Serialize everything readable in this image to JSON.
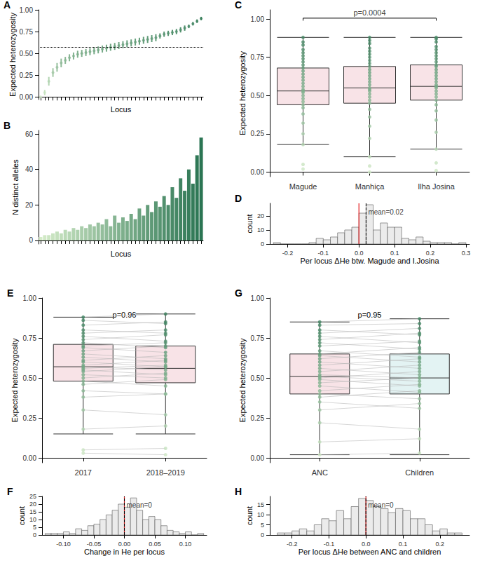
{
  "chart_data": [
    {
      "title": "A",
      "type": "scatter",
      "x_label": "Locus",
      "y_label": "Expected heterozygosity",
      "categories": [
        null,
        null,
        null,
        null,
        null,
        null,
        null,
        null,
        null,
        null,
        null,
        null,
        null,
        null,
        null,
        null,
        null,
        null,
        null,
        null,
        null,
        null,
        null,
        null,
        null,
        null,
        null,
        null,
        null,
        null,
        null,
        null,
        null,
        null,
        null,
        null,
        null,
        null,
        null,
        null
      ],
      "values": [
        0.0,
        0.05,
        0.18,
        0.28,
        0.34,
        0.39,
        0.42,
        0.45,
        0.47,
        0.49,
        0.5,
        0.51,
        0.52,
        0.53,
        0.54,
        0.55,
        0.56,
        0.57,
        0.58,
        0.59,
        0.6,
        0.61,
        0.62,
        0.63,
        0.64,
        0.65,
        0.66,
        0.67,
        0.68,
        0.7,
        0.72,
        0.73,
        0.74,
        0.75,
        0.77,
        0.79,
        0.81,
        0.84,
        0.87,
        0.9
      ],
      "error": [
        0.0,
        0.03,
        0.05,
        0.05,
        0.05,
        0.05,
        0.04,
        0.04,
        0.04,
        0.04,
        0.04,
        0.04,
        0.04,
        0.04,
        0.04,
        0.04,
        0.04,
        0.04,
        0.04,
        0.04,
        0.04,
        0.04,
        0.04,
        0.04,
        0.04,
        0.04,
        0.04,
        0.04,
        0.04,
        0.03,
        0.03,
        0.03,
        0.03,
        0.03,
        0.03,
        0.03,
        0.02,
        0.02,
        0.02,
        0.02
      ],
      "reference": {
        "value": 0.57,
        "line_style": "dotted"
      },
      "color": [
        "#d5ecc9",
        "#2b7553"
      ],
      "ylim": [
        -0.03,
        1.0
      ],
      "yticks": [
        {
          "value": 0,
          "label": "0.00"
        },
        0.25,
        {
          "value": 0.5,
          "label": "0.50"
        },
        0.75,
        {
          "value": 1,
          "label": "1.00"
        }
      ],
      "tick_labels": "y",
      "grid": false
    },
    {
      "title": "B",
      "type": "bar",
      "x_label": "Locus",
      "y_label": "N distinct alleles",
      "categories": [
        null,
        null,
        null,
        null,
        null,
        null,
        null,
        null,
        null,
        null,
        null,
        null,
        null,
        null,
        null,
        null,
        null,
        null,
        null,
        null,
        null,
        null,
        null,
        null,
        null,
        null,
        null,
        null,
        null,
        null,
        null,
        null,
        null,
        null,
        null,
        null,
        null,
        null,
        null,
        null
      ],
      "values": [
        2,
        3,
        3,
        4,
        5,
        4,
        6,
        5,
        7,
        6,
        8,
        7,
        9,
        8,
        10,
        9,
        12,
        8,
        14,
        10,
        13,
        11,
        15,
        12,
        18,
        14,
        20,
        16,
        22,
        19,
        25,
        20,
        30,
        24,
        35,
        28,
        40,
        32,
        48,
        58
      ],
      "color": [
        "#d5ecc9",
        "#2b7553"
      ],
      "ylim": [
        -2,
        62
      ],
      "yticks": [
        0,
        20,
        40,
        60
      ],
      "tick_labels": "y",
      "grid": false
    },
    {
      "title": "C",
      "type": "boxplot",
      "y_label": "Expected heterozygosity",
      "categories": [
        "Magude",
        "Manhiça",
        "Ilha Josina"
      ],
      "boxes": [
        [
          0.18,
          0.44,
          0.53,
          0.68,
          0.88
        ],
        [
          0.1,
          0.45,
          0.55,
          0.69,
          0.88
        ],
        [
          0.15,
          0.47,
          0.56,
          0.7,
          0.88
        ]
      ],
      "points": [
        [
          0.02,
          0.05,
          0.18,
          0.25,
          0.32,
          0.38,
          0.42,
          0.44,
          0.46,
          0.48,
          0.5,
          0.52,
          0.53,
          0.54,
          0.56,
          0.58,
          0.6,
          0.62,
          0.64,
          0.66,
          0.68,
          0.7,
          0.72,
          0.74,
          0.76,
          0.78,
          0.8,
          0.83,
          0.85,
          0.88
        ],
        [
          0.0,
          0.04,
          0.1,
          0.22,
          0.3,
          0.36,
          0.41,
          0.45,
          0.47,
          0.49,
          0.51,
          0.53,
          0.54,
          0.55,
          0.57,
          0.59,
          0.61,
          0.63,
          0.65,
          0.67,
          0.69,
          0.71,
          0.73,
          0.75,
          0.77,
          0.79,
          0.81,
          0.84,
          0.86,
          0.88
        ],
        [
          0.01,
          0.06,
          0.15,
          0.26,
          0.34,
          0.4,
          0.44,
          0.47,
          0.49,
          0.51,
          0.53,
          0.55,
          0.56,
          0.57,
          0.59,
          0.61,
          0.63,
          0.65,
          0.67,
          0.69,
          0.7,
          0.72,
          0.74,
          0.76,
          0.78,
          0.8,
          0.82,
          0.85,
          0.87,
          0.88
        ]
      ],
      "annotation": {
        "text": "p=0.0004",
        "from": "Magude",
        "to": "Ilha Josina"
      },
      "colors": [
        "#f8e3e7",
        "#f8e3e7",
        "#f8e3e7"
      ],
      "color": [
        "#d5ecc9",
        "#2b7553"
      ],
      "ylim": [
        -0.03,
        1.06
      ],
      "yticks": [
        {
          "value": 0,
          "label": "0.00"
        },
        0.25,
        {
          "value": 0.5,
          "label": "0.50"
        },
        0.75,
        {
          "value": 1,
          "label": "1.00"
        }
      ],
      "grid": false
    },
    {
      "title": "D",
      "type": "histogram",
      "x_label": "Per locus ΔHe btw. Magude and I.Josina",
      "y_label": "count",
      "bins": [
        -0.24,
        -0.22,
        -0.2,
        -0.18,
        -0.16,
        -0.14,
        -0.12,
        -0.1,
        -0.08,
        -0.06,
        -0.04,
        -0.02,
        0,
        0.02,
        0.04,
        0.06,
        0.08,
        0.1,
        0.12,
        0.14,
        0.16,
        0.18,
        0.2,
        0.22,
        0.24,
        0.26,
        0.28,
        0.3
      ],
      "counts": [
        1,
        0,
        0,
        0,
        0,
        1,
        4,
        3,
        5,
        8,
        10,
        12,
        22,
        28,
        10,
        15,
        12,
        12,
        4,
        3,
        5,
        2,
        1,
        1,
        1,
        0,
        1
      ],
      "reference": 0,
      "mean": 0.02,
      "annotation": "mean=0.02",
      "xlim": [
        -0.25,
        0.31
      ],
      "xticks": [
        -0.2,
        -0.1,
        {
          "value": 0,
          "label": "0.0"
        },
        0.1,
        0.2,
        0.3
      ],
      "ylim": [
        0,
        29
      ],
      "yticks": [
        0,
        10,
        20
      ],
      "grid": false
    },
    {
      "title": "E",
      "type": "paired_boxplot",
      "y_label": "Expected heterozygosity",
      "categories": [
        "2017",
        "2018–2019"
      ],
      "boxes": [
        [
          0.15,
          0.48,
          0.57,
          0.71,
          0.88
        ],
        [
          0.15,
          0.47,
          0.56,
          0.7,
          0.9
        ]
      ],
      "points": [
        [
          0.03,
          0.05,
          0.18,
          0.3,
          0.38,
          0.42,
          0.46,
          0.48,
          0.5,
          0.52,
          0.54,
          0.55,
          0.56,
          0.57,
          0.58,
          0.6,
          0.61,
          0.63,
          0.65,
          0.67,
          0.69,
          0.7,
          0.72,
          0.74,
          0.76,
          0.78,
          0.8,
          0.83,
          0.86,
          0.88
        ],
        [
          0.02,
          0.06,
          0.2,
          0.27,
          0.4,
          0.4,
          0.49,
          0.45,
          0.53,
          0.5,
          0.57,
          0.52,
          0.58,
          0.55,
          0.61,
          0.57,
          0.64,
          0.6,
          0.62,
          0.7,
          0.66,
          0.72,
          0.69,
          0.77,
          0.73,
          0.8,
          0.78,
          0.85,
          0.84,
          0.9
        ]
      ],
      "annotation": "p=0.96",
      "colors": [
        "#f8e3e7",
        "#f8e3e7"
      ],
      "color": [
        "#d5ecc9",
        "#2b7553"
      ],
      "ylim": [
        -0.03,
        1.0
      ],
      "yticks": [
        {
          "value": 0,
          "label": "0.00"
        },
        0.25,
        {
          "value": 0.5,
          "label": "0.50"
        },
        0.75,
        {
          "value": 1,
          "label": "1.00"
        }
      ],
      "grid": false
    },
    {
      "title": "F",
      "type": "histogram",
      "x_label": "Change in He per locus",
      "y_label": "count",
      "bins": [
        -0.13,
        -0.12,
        -0.11,
        -0.1,
        -0.09,
        -0.08,
        -0.07,
        -0.06,
        -0.05,
        -0.04,
        -0.03,
        -0.02,
        -0.01,
        0,
        0.01,
        0.02,
        0.03,
        0.04,
        0.05,
        0.06,
        0.07,
        0.08,
        0.09,
        0.1,
        0.11,
        0.12,
        0.13
      ],
      "counts": [
        1,
        1,
        1,
        2,
        1,
        4,
        3,
        6,
        7,
        10,
        13,
        16,
        20,
        18,
        24,
        16,
        10,
        12,
        10,
        6,
        3,
        2,
        1,
        2,
        0,
        1
      ],
      "reference": 0,
      "mean": 0,
      "annotation": "mean=0",
      "xlim": [
        -0.135,
        0.135
      ],
      "xticks": [
        {
          "value": -0.1,
          "label": "-0.10"
        },
        -0.05,
        {
          "value": 0,
          "label": "0.00"
        },
        0.05,
        {
          "value": 0.1,
          "label": "0.10"
        }
      ],
      "ylim": [
        0,
        25
      ],
      "yticks": [
        0,
        5,
        10,
        15,
        20,
        25
      ],
      "grid": false
    },
    {
      "title": "G",
      "type": "paired_boxplot",
      "y_label": "Expected heterozygosity",
      "categories": [
        "ANC",
        "Children"
      ],
      "boxes": [
        [
          0.02,
          0.4,
          0.51,
          0.65,
          0.85
        ],
        [
          0.02,
          0.4,
          0.5,
          0.65,
          0.87
        ]
      ],
      "points": [
        [
          0.02,
          0.1,
          0.22,
          0.3,
          0.35,
          0.38,
          0.4,
          0.42,
          0.45,
          0.47,
          0.49,
          0.5,
          0.51,
          0.52,
          0.54,
          0.56,
          0.58,
          0.6,
          0.62,
          0.64,
          0.65,
          0.67,
          0.7,
          0.72,
          0.74,
          0.76,
          0.78,
          0.8,
          0.83,
          0.85
        ],
        [
          0.03,
          0.12,
          0.18,
          0.34,
          0.31,
          0.42,
          0.37,
          0.46,
          0.41,
          0.5,
          0.45,
          0.54,
          0.48,
          0.5,
          0.58,
          0.52,
          0.62,
          0.56,
          0.66,
          0.6,
          0.69,
          0.63,
          0.73,
          0.68,
          0.78,
          0.72,
          0.81,
          0.77,
          0.84,
          0.87
        ]
      ],
      "annotation": "p=0.95",
      "colors": [
        "#f8e3e7",
        "#e3f3f3"
      ],
      "color": [
        "#d5ecc9",
        "#2b7553"
      ],
      "ylim": [
        -0.03,
        1.0
      ],
      "yticks": [
        {
          "value": 0,
          "label": "0.00"
        },
        0.25,
        {
          "value": 0.5,
          "label": "0.50"
        },
        0.75,
        {
          "value": 1,
          "label": "1.00"
        }
      ],
      "grid": false
    },
    {
      "title": "H",
      "type": "histogram",
      "x_label": "Per locus ΔHe between ANC and children",
      "y_label": "count",
      "bins": [
        -0.24,
        -0.22,
        -0.2,
        -0.18,
        -0.16,
        -0.14,
        -0.12,
        -0.1,
        -0.08,
        -0.06,
        -0.04,
        -0.02,
        0,
        0.02,
        0.04,
        0.06,
        0.08,
        0.1,
        0.12,
        0.14,
        0.16,
        0.18,
        0.2,
        0.22,
        0.24,
        0.26
      ],
      "counts": [
        1,
        1,
        2,
        3,
        2,
        5,
        8,
        7,
        12,
        8,
        14,
        18,
        17,
        14,
        13,
        11,
        13,
        12,
        8,
        8,
        5,
        2,
        3,
        1,
        1
      ],
      "reference": 0,
      "mean": 0,
      "annotation": "mean=0",
      "xlim": [
        -0.26,
        0.28
      ],
      "xticks": [
        -0.2,
        -0.1,
        {
          "value": 0,
          "label": "0.0"
        },
        0.1,
        0.2
      ],
      "ylim": [
        0,
        19
      ],
      "yticks": [
        0,
        5,
        10,
        15
      ],
      "grid": false
    }
  ]
}
